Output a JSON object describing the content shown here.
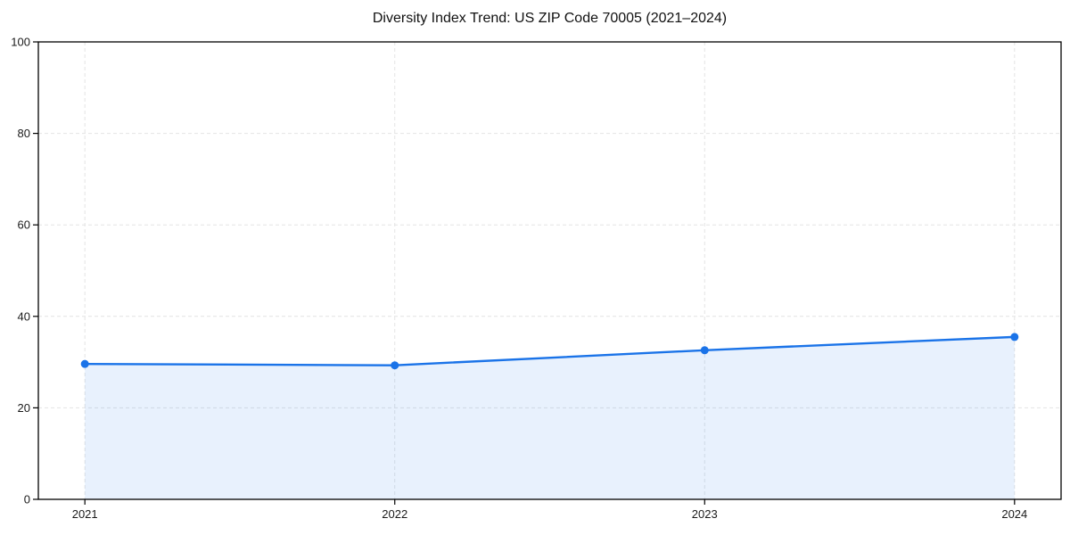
{
  "chart_data": {
    "type": "area",
    "title": "Diversity Index Trend: US ZIP Code 70005 (2021–2024)",
    "categories": [
      "2021",
      "2022",
      "2023",
      "2024"
    ],
    "series": [
      {
        "name": "Diversity Index",
        "values": [
          29.6,
          29.3,
          32.6,
          35.5
        ]
      }
    ],
    "xlabel": "",
    "ylabel": "",
    "ylim": [
      0,
      100
    ],
    "yticks": [
      0,
      20,
      40,
      60,
      80,
      100
    ],
    "grid": true,
    "grid_style": "dashed",
    "legend_position": "none",
    "colors": {
      "line": "#1a73e8",
      "marker": "#1a73e8",
      "fill": "rgba(26,115,232,0.10)",
      "grid": "#e4e4e4",
      "spine": "#000000",
      "tick_text": "#1a1a1a",
      "background": "#ffffff"
    }
  }
}
